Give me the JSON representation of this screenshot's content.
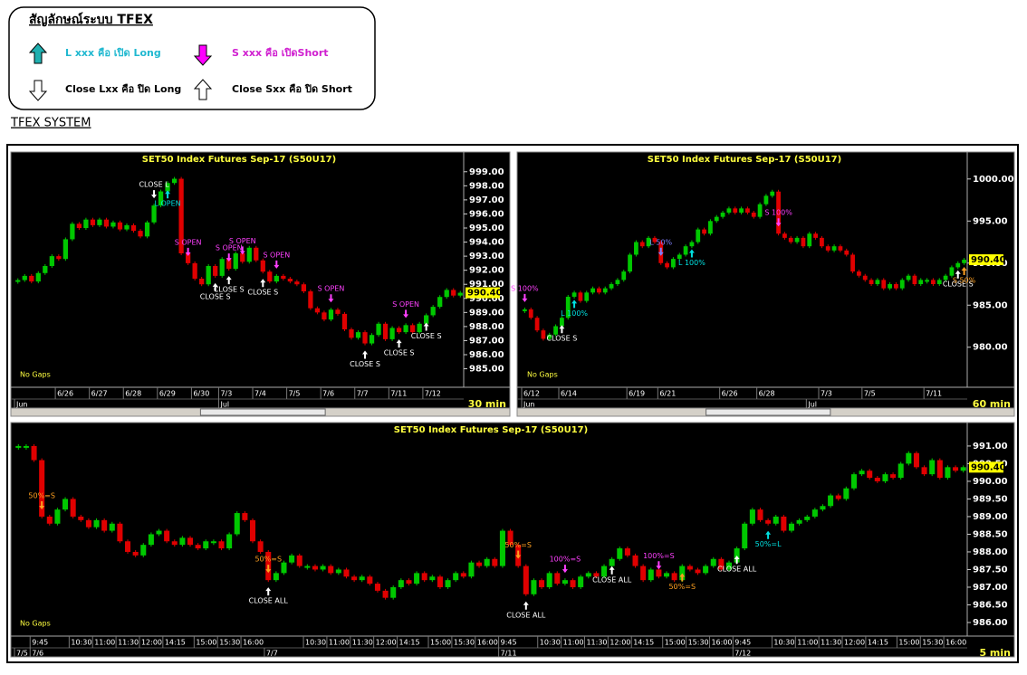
{
  "legend_box": {
    "title": "สัญลักษณ์ระบบ TFEX",
    "items": [
      "L xxx คือ เปิด Long",
      "S xxx คือ เปิดShort",
      "Close Lxx คือ ปิด Long",
      "Close Sxx คือ ปิด Short"
    ]
  },
  "section_title": "TFEX SYSTEM",
  "chart_data": [
    {
      "type": "candlestick",
      "title": "SET50  Index  Futures  Sep-17  (S50U17)",
      "timeframe": "30  min",
      "note": "No Gaps",
      "up_color": "#00c800",
      "down_color": "#e00000",
      "values": [
        991.3,
        991.6,
        991.2,
        991.8,
        992.3,
        993.0,
        992.8,
        994.2,
        995.3,
        995.0,
        995.6,
        995.2,
        995.6,
        995.1,
        995.4,
        994.9,
        995.2,
        994.8,
        994.4,
        995.4,
        996.6,
        997.6,
        998.2,
        998.5,
        993.2,
        992.5,
        991.4,
        991.0,
        992.3,
        991.6,
        992.8,
        992.1,
        993.2,
        992.6,
        993.6,
        992.7,
        991.9,
        991.2,
        991.6,
        991.4,
        991.2,
        991.0,
        990.5,
        989.3,
        989.0,
        988.5,
        989.2,
        988.9,
        987.8,
        987.2,
        987.6,
        986.8,
        987.4,
        988.2,
        987.1,
        987.9,
        987.6,
        988.1,
        987.6,
        988.2,
        988.8,
        989.4,
        990.1,
        990.6,
        990.2,
        990.4
      ],
      "categories": [
        null,
        null,
        null,
        null,
        null,
        null,
        "6/26",
        null,
        null,
        null,
        null,
        "6/27",
        null,
        null,
        null,
        null,
        "6/28",
        null,
        null,
        null,
        null,
        "6/29",
        null,
        null,
        null,
        null,
        "6/30",
        null,
        null,
        null,
        "7/3",
        null,
        null,
        null,
        null,
        "7/4",
        null,
        null,
        null,
        null,
        "7/5",
        null,
        null,
        null,
        null,
        "7/6",
        null,
        null,
        null,
        null,
        "7/7",
        null,
        null,
        null,
        null,
        "7/11",
        null,
        null,
        null,
        null,
        "7/12",
        null,
        null,
        null,
        null,
        null
      ],
      "categories2": [
        "Jun",
        null,
        null,
        null,
        null,
        null,
        null,
        null,
        null,
        null,
        null,
        null,
        null,
        null,
        null,
        null,
        null,
        null,
        null,
        null,
        null,
        null,
        null,
        null,
        null,
        null,
        null,
        null,
        null,
        null,
        "Jul",
        null,
        null,
        null,
        null,
        null,
        null,
        null,
        null,
        null,
        null,
        null,
        null,
        null,
        null,
        null,
        null,
        null,
        null,
        null,
        null,
        null,
        null,
        null,
        null,
        null,
        null,
        null,
        null,
        null,
        null,
        null,
        null,
        null,
        null,
        null
      ],
      "ylim": [
        984.2,
        999.5
      ],
      "yticks": [
        {
          "value": 985,
          "label": "985.00"
        },
        {
          "value": 986,
          "label": "986.00"
        },
        {
          "value": 987,
          "label": "987.00"
        },
        {
          "value": 988,
          "label": "988.00"
        },
        {
          "value": 989,
          "label": "989.00"
        },
        {
          "value": 990,
          "label": "990.00"
        },
        {
          "value": 991,
          "label": "991.00"
        },
        {
          "value": 992,
          "label": "992.00"
        },
        {
          "value": 993,
          "label": "993.00"
        },
        {
          "value": 994,
          "label": "994.00"
        },
        {
          "value": 995,
          "label": "995.00"
        },
        {
          "value": 996,
          "label": "996.00"
        },
        {
          "value": 997,
          "label": "997.00"
        },
        {
          "value": 998,
          "label": "998.00"
        },
        {
          "value": 999,
          "label": "999.00"
        }
      ],
      "price_tag": {
        "value": 990.4,
        "label": "990.40"
      },
      "annotations": [
        {
          "text": "CLOSE L",
          "at": 20,
          "dir": "down",
          "color": "#ffffff"
        },
        {
          "text": "L OPEN",
          "at": 22,
          "dir": "up",
          "color": "#00e0e0"
        },
        {
          "text": "S OPEN",
          "at": 25,
          "dir": "down",
          "color": "#ff40ff"
        },
        {
          "text": "S OPEN",
          "at": 31,
          "dir": "down",
          "color": "#ff40ff"
        },
        {
          "text": "S OPEN",
          "at": 33,
          "dir": "down",
          "color": "#ff40ff"
        },
        {
          "text": "S OPEN",
          "at": 38,
          "dir": "down",
          "color": "#ff40ff"
        },
        {
          "text": "CLOSE S",
          "at": 29,
          "dir": "up",
          "color": "#ffffff"
        },
        {
          "text": "CLOSE S",
          "at": 31,
          "dir": "up",
          "color": "#ffffff"
        },
        {
          "text": "CLOSE S",
          "at": 36,
          "dir": "up",
          "color": "#ffffff"
        },
        {
          "text": "S OPEN",
          "at": 46,
          "dir": "down",
          "color": "#ff40ff"
        },
        {
          "text": "S OPEN",
          "at": 57,
          "dir": "down",
          "color": "#ff40ff"
        },
        {
          "text": "CLOSE S",
          "at": 51,
          "dir": "up",
          "color": "#ffffff"
        },
        {
          "text": "CLOSE S",
          "at": 56,
          "dir": "up",
          "color": "#ffffff"
        },
        {
          "text": "CLOSE S",
          "at": 60,
          "dir": "up",
          "color": "#ffffff"
        }
      ]
    },
    {
      "type": "candlestick",
      "title": "SET50  Index  Futures  Sep-17  (S50U17)",
      "timeframe": "60  min",
      "note": "No Gaps",
      "up_color": "#00c800",
      "down_color": "#e00000",
      "values": [
        984.5,
        983.5,
        982,
        981,
        981.5,
        982.5,
        983.5,
        986,
        986.5,
        985.5,
        986.5,
        987,
        986.5,
        987,
        987.5,
        988,
        989,
        991,
        992.5,
        992,
        993,
        992.5,
        990,
        989.5,
        990.5,
        991,
        992,
        992.5,
        994,
        993.5,
        995,
        995.5,
        996,
        996.5,
        996,
        996.5,
        996,
        995.5,
        997,
        998,
        998.5,
        993.5,
        993,
        992.5,
        993,
        992,
        993.5,
        993,
        992,
        991.5,
        992,
        991.5,
        991,
        989,
        988.5,
        988,
        987.5,
        988,
        987,
        987.5,
        987,
        988,
        988.5,
        987.5,
        988,
        988,
        987.5,
        988,
        988.5,
        989.5,
        990,
        990.4
      ],
      "categories": [
        "6/12",
        null,
        null,
        null,
        null,
        null,
        "6/14",
        null,
        null,
        null,
        null,
        null,
        null,
        null,
        null,
        null,
        null,
        "6/19",
        null,
        null,
        null,
        null,
        "6/21",
        null,
        null,
        null,
        null,
        null,
        null,
        null,
        null,
        null,
        "6/26",
        null,
        null,
        null,
        null,
        null,
        "6/28",
        null,
        null,
        null,
        null,
        null,
        null,
        null,
        null,
        null,
        "7/3",
        null,
        null,
        null,
        null,
        null,
        null,
        "7/5",
        null,
        null,
        null,
        null,
        null,
        null,
        null,
        null,
        null,
        "7/11",
        null,
        null,
        null,
        null,
        null,
        null
      ],
      "categories2": [
        "Jun",
        null,
        null,
        null,
        null,
        null,
        null,
        null,
        null,
        null,
        null,
        null,
        null,
        null,
        null,
        null,
        null,
        null,
        null,
        null,
        null,
        null,
        null,
        null,
        null,
        null,
        null,
        null,
        null,
        null,
        null,
        null,
        null,
        null,
        null,
        null,
        null,
        null,
        null,
        null,
        null,
        null,
        null,
        null,
        null,
        null,
        "Jul",
        null,
        null,
        null,
        null,
        null,
        null,
        null,
        null,
        null,
        null,
        null,
        null,
        null,
        null,
        null,
        null,
        null,
        null,
        null,
        null,
        null,
        null,
        null,
        null,
        null
      ],
      "ylim": [
        976.1,
        1001.7
      ],
      "yticks": [
        {
          "value": 980,
          "label": "980.00"
        },
        {
          "value": 985,
          "label": "985.00"
        },
        {
          "value": 990,
          "label": "990.00"
        },
        {
          "value": 995,
          "label": "995.00"
        },
        {
          "value": 1000,
          "label": "1000.00"
        }
      ],
      "price_tag": {
        "value": 990.4,
        "label": "990.40"
      },
      "annotations": [
        {
          "text": "S 100%",
          "at": 0,
          "dir": "down",
          "color": "#ff40ff"
        },
        {
          "text": "CLOSE S",
          "at": 6,
          "dir": "up",
          "color": "#ffffff"
        },
        {
          "text": "L 100%",
          "at": 8,
          "dir": "up",
          "color": "#00e0e0"
        },
        {
          "text": "L 50%",
          "at": 22,
          "dir": "down",
          "color": "#8080ff"
        },
        {
          "text": "L 100%",
          "at": 27,
          "dir": "up",
          "color": "#00e0e0"
        },
        {
          "text": "S 100%",
          "at": 41,
          "dir": "down",
          "color": "#ff40ff"
        },
        {
          "text": "CLOSE S",
          "at": 70,
          "dir": "up",
          "color": "#ffffff"
        },
        {
          "text": "S 50%",
          "at": 71,
          "dir": "up",
          "color": "#ffa020"
        }
      ]
    },
    {
      "type": "candlestick",
      "title": "SET50  Index  Futures  Sep-17  (S50U17)",
      "timeframe": "5  min",
      "note": "No Gaps",
      "up_color": "#00c800",
      "down_color": "#e00000",
      "values": [
        991.0,
        991.0,
        990.6,
        989.0,
        988.8,
        989.2,
        989.5,
        989.0,
        988.9,
        988.7,
        988.9,
        988.6,
        988.8,
        988.3,
        988.0,
        987.9,
        988.2,
        988.5,
        988.6,
        988.3,
        988.2,
        988.4,
        988.2,
        988.1,
        988.3,
        988.3,
        988.1,
        988.5,
        989.1,
        988.9,
        988.3,
        988.0,
        987.2,
        987.4,
        987.7,
        987.9,
        987.6,
        987.6,
        987.5,
        987.6,
        987.4,
        987.5,
        987.3,
        987.2,
        987.3,
        987.1,
        986.9,
        986.7,
        987.0,
        987.2,
        987.1,
        987.4,
        987.2,
        987.3,
        987.0,
        987.2,
        987.4,
        987.3,
        987.7,
        987.6,
        987.8,
        987.6,
        988.6,
        988.2,
        987.6,
        986.8,
        987.2,
        987.0,
        987.4,
        987.1,
        987.2,
        987.0,
        987.3,
        987.4,
        987.3,
        987.6,
        987.8,
        988.1,
        987.9,
        987.6,
        987.2,
        987.5,
        987.3,
        987.4,
        987.2,
        987.6,
        987.5,
        987.4,
        987.6,
        987.8,
        987.5,
        987.7,
        988.1,
        988.8,
        989.2,
        988.9,
        988.8,
        989.0,
        988.6,
        988.8,
        988.9,
        989.0,
        989.2,
        989.3,
        989.6,
        989.5,
        989.8,
        990.2,
        990.3,
        990.1,
        990.0,
        990.2,
        990.1,
        990.5,
        990.8,
        990.4,
        990.2,
        990.6,
        990.1,
        990.4,
        990.3,
        990.4
      ],
      "categories": [
        null,
        null,
        "9:45",
        null,
        null,
        null,
        null,
        "10:30",
        null,
        null,
        "11:00",
        null,
        null,
        "11:30",
        null,
        null,
        "12:00",
        null,
        null,
        "14:15",
        null,
        null,
        null,
        "15:00",
        null,
        null,
        "15:30",
        null,
        null,
        "16:00",
        null,
        null,
        null,
        null,
        null,
        null,
        null,
        "10:30",
        null,
        null,
        "11:00",
        null,
        null,
        "11:30",
        null,
        null,
        "12:00",
        null,
        null,
        "14:15",
        null,
        null,
        null,
        "15:00",
        null,
        null,
        "15:30",
        null,
        null,
        "16:00",
        null,
        null,
        "9:45",
        null,
        null,
        null,
        null,
        "10:30",
        null,
        null,
        "11:00",
        null,
        null,
        "11:30",
        null,
        null,
        "12:00",
        null,
        null,
        "14:15",
        null,
        null,
        null,
        "15:00",
        null,
        null,
        "15:30",
        null,
        null,
        "16:00",
        null,
        null,
        "9:45",
        null,
        null,
        null,
        null,
        "10:30",
        null,
        null,
        "11:00",
        null,
        null,
        "11:30",
        null,
        null,
        "12:00",
        null,
        null,
        "14:15",
        null,
        null,
        null,
        "15:00",
        null,
        null,
        "15:30",
        null,
        null,
        "16:00",
        null,
        null
      ],
      "categories2": [
        "7/5",
        null,
        "7/6",
        null,
        null,
        null,
        null,
        null,
        null,
        null,
        null,
        null,
        null,
        null,
        null,
        null,
        null,
        null,
        null,
        null,
        null,
        null,
        null,
        null,
        null,
        null,
        null,
        null,
        null,
        null,
        null,
        null,
        "7/7",
        null,
        null,
        null,
        null,
        null,
        null,
        null,
        null,
        null,
        null,
        null,
        null,
        null,
        null,
        null,
        null,
        null,
        null,
        null,
        null,
        null,
        null,
        null,
        null,
        null,
        null,
        null,
        null,
        null,
        "7/11",
        null,
        null,
        null,
        null,
        null,
        null,
        null,
        null,
        null,
        null,
        null,
        null,
        null,
        null,
        null,
        null,
        null,
        null,
        null,
        null,
        null,
        null,
        null,
        null,
        null,
        null,
        null,
        null,
        null,
        "7/12",
        null,
        null,
        null,
        null,
        null,
        null,
        null,
        null,
        null,
        null,
        null,
        null,
        null,
        null,
        null,
        null,
        null,
        null,
        null,
        null,
        null,
        null,
        null,
        null,
        null,
        null,
        null,
        null,
        null
      ],
      "ylim": [
        985.82,
        991.28
      ],
      "yticks": [
        {
          "value": 986,
          "label": "986.00"
        },
        {
          "value": 986.5,
          "label": "986.50"
        },
        {
          "value": 987,
          "label": "987.00"
        },
        {
          "value": 987.5,
          "label": "987.50"
        },
        {
          "value": 988,
          "label": "988.00"
        },
        {
          "value": 988.5,
          "label": "988.50"
        },
        {
          "value": 989,
          "label": "989.00"
        },
        {
          "value": 989.5,
          "label": "989.50"
        },
        {
          "value": 990,
          "label": "990.00"
        },
        {
          "value": 990.5,
          "label": "990.50"
        },
        {
          "value": 991,
          "label": "991.00"
        }
      ],
      "price_tag": {
        "value": 990.4,
        "label": "990.40"
      },
      "annotations": [
        {
          "text": "50%=S",
          "at": 3,
          "dir": "down",
          "color": "#ffa020"
        },
        {
          "text": "50%=S",
          "at": 32,
          "dir": "down",
          "color": "#ffa020"
        },
        {
          "text": "CLOSE  ALL",
          "at": 32,
          "dir": "up",
          "color": "#ffffff"
        },
        {
          "text": "50%=S",
          "at": 64,
          "dir": "down",
          "color": "#ffa020"
        },
        {
          "text": "CLOSE  ALL",
          "at": 65,
          "dir": "up",
          "color": "#ffffff"
        },
        {
          "text": "100%=S",
          "at": 70,
          "dir": "down",
          "color": "#ff40ff"
        },
        {
          "text": "CLOSE  ALL",
          "at": 76,
          "dir": "up",
          "color": "#ffffff"
        },
        {
          "text": "100%=S",
          "at": 82,
          "dir": "down",
          "color": "#ff40ff"
        },
        {
          "text": "50%=S",
          "at": 85,
          "dir": "up",
          "color": "#ffa020"
        },
        {
          "text": "CLOSE  ALL",
          "at": 92,
          "dir": "up",
          "color": "#ffffff"
        },
        {
          "text": "50%=L",
          "at": 96,
          "dir": "up",
          "color": "#00e0e0"
        }
      ]
    }
  ]
}
